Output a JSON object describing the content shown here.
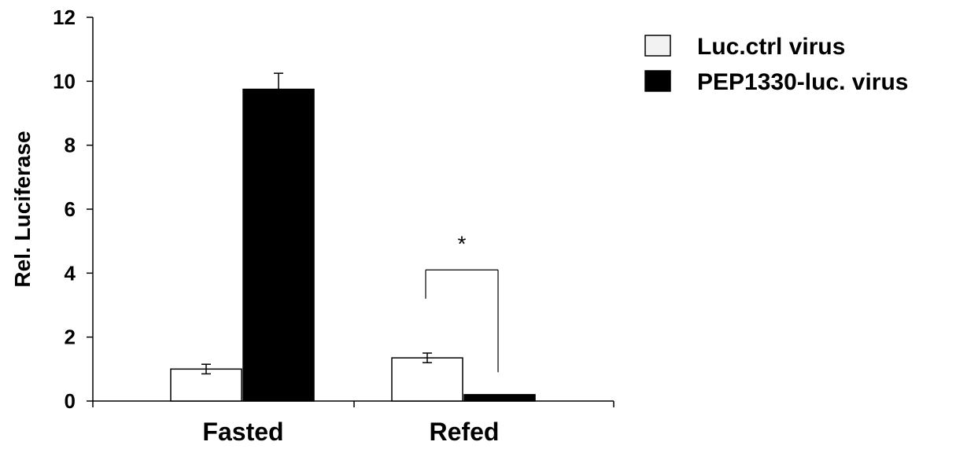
{
  "chart_data": {
    "type": "bar",
    "categories": [
      "Fasted",
      "Refed"
    ],
    "series": [
      {
        "name": "Luc.ctrl virus",
        "values": [
          1.0,
          1.35
        ],
        "errors": [
          0.15,
          0.15
        ],
        "color": "#ffffff"
      },
      {
        "name": "PEP1330-luc. virus",
        "values": [
          9.75,
          0.2
        ],
        "errors": [
          0.5,
          0.0
        ],
        "color": "#000000"
      }
    ],
    "title": "",
    "xlabel": "",
    "ylabel": "Rel. Luciferase",
    "ylim": [
      0,
      12
    ],
    "yticks": [
      0,
      2,
      4,
      6,
      8,
      10,
      12
    ],
    "grid": false,
    "legend_position": "top-right",
    "annotations": [
      {
        "text": "*",
        "category": "Refed",
        "level": 4.1
      }
    ]
  }
}
